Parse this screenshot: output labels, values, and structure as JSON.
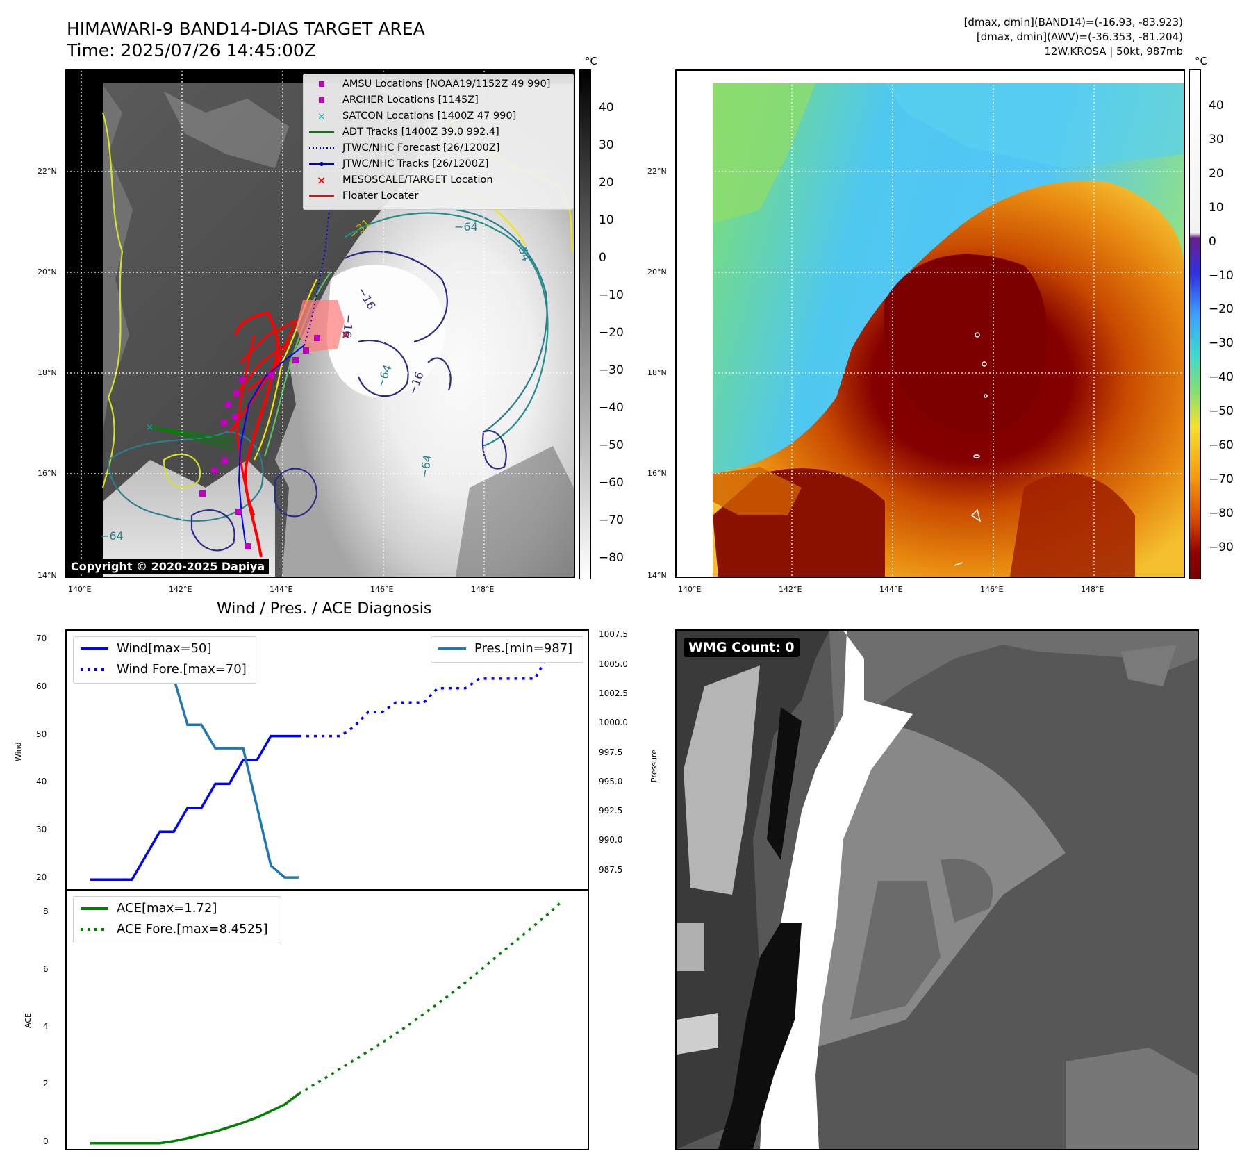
{
  "header": {
    "title_line1": "HIMAWARI-9 BAND14-DIAS TARGET AREA",
    "title_line2": "Time: 2025/07/26 14:45:00Z",
    "info_line1": "[dmax, dmin](BAND14)=(-16.93, -83.923)",
    "info_line2": "[dmax, dmin](AWV)=(-36.353, -81.204)",
    "info_line3": "12W.KROSA | 50kt, 987mb"
  },
  "map_axes": {
    "lat_labels": [
      "22°N",
      "20°N",
      "18°N",
      "16°N",
      "14°N"
    ],
    "lon_labels": [
      "140°E",
      "142°E",
      "144°E",
      "146°E",
      "148°E"
    ]
  },
  "ir_panel": {
    "colorbar_unit": "°C",
    "colorbar_ticks": [
      "40",
      "30",
      "20",
      "10",
      "0",
      "−10",
      "−20",
      "−30",
      "−40",
      "−50",
      "−60",
      "−70",
      "−80"
    ],
    "copyright": "Copyright © 2020-2025 Dapiya",
    "contour_labels": [
      "−64",
      "−54",
      "−16",
      "−64",
      "−16",
      "−64",
      "−31",
      "−16",
      "−64"
    ],
    "legend": [
      {
        "label": "AMSU Locations [NOAA19/1152Z 49 990]",
        "color": "#c000c0",
        "symbol": "square"
      },
      {
        "label": "ARCHER Locations [1145Z]",
        "color": "#c000c0",
        "symbol": "square"
      },
      {
        "label": "SATCON Locations [1400Z 47 990]",
        "color": "#00b0b0",
        "symbol": "x"
      },
      {
        "label": "ADT Tracks [1400Z 39.0 992.4]",
        "color": "#008000",
        "symbol": "line"
      },
      {
        "label": "JTWC/NHC Forecast [26/1200Z]",
        "color": "#0000cc",
        "symbol": "dotted"
      },
      {
        "label": "JTWC/NHC Tracks [26/1200Z]",
        "color": "#0000cc",
        "symbol": "line-dot"
      },
      {
        "label": "MESOSCALE/TARGET Location",
        "color": "#ff0000",
        "symbol": "x"
      },
      {
        "label": "Floater Locater",
        "color": "#ff0000",
        "symbol": "line"
      }
    ]
  },
  "awv_panel": {
    "colorbar_unit": "°C",
    "colorbar_ticks": [
      "40",
      "30",
      "20",
      "10",
      "0",
      "−10",
      "−20",
      "−30",
      "−40",
      "−50",
      "−60",
      "−70",
      "−80",
      "−90"
    ]
  },
  "wmg_panel": {
    "label": "WMG Count: 0"
  },
  "diagnosis": {
    "title": "Wind / Pres. / ACE Diagnosis",
    "wind_axis_title": "Wind",
    "pressure_axis_title": "Pressure",
    "ace_axis_title": "ACE",
    "wind_ticks": [
      "70",
      "60",
      "50",
      "40",
      "30",
      "20"
    ],
    "pressure_ticks": [
      "1007.5",
      "1005.0",
      "1002.5",
      "1000.0",
      "997.5",
      "995.0",
      "992.5",
      "990.0",
      "987.5"
    ],
    "ace_ticks": [
      "8",
      "6",
      "4",
      "2",
      "0"
    ],
    "legend_wind": "Wind[max=50]",
    "legend_wind_fore": "Wind Fore.[max=70]",
    "legend_pres": "Pres.[min=987]",
    "legend_ace": "ACE[max=1.72]",
    "legend_ace_fore": "ACE Fore.[max=8.4525]"
  },
  "chart_data": {
    "type": "line",
    "x": [
      0,
      1,
      2,
      3,
      4,
      5,
      6,
      7,
      8,
      9,
      10,
      11,
      12,
      13,
      14,
      15,
      16,
      17,
      18,
      19,
      20,
      21,
      22,
      23,
      24,
      25,
      26,
      27,
      28,
      29,
      30,
      31,
      32,
      33,
      34
    ],
    "series": [
      {
        "name": "Wind[max=50]",
        "axis": "wind",
        "style": "solid",
        "color": "#0000ff",
        "x": [
          0,
          1,
          2,
          3,
          4,
          5,
          6,
          7,
          8,
          9,
          10,
          11,
          12,
          13,
          14,
          15
        ],
        "values": [
          20,
          20,
          20,
          20,
          25,
          30,
          30,
          35,
          35,
          40,
          40,
          45,
          45,
          50,
          50,
          50
        ]
      },
      {
        "name": "Wind Fore.[max=70]",
        "axis": "wind",
        "style": "dotted",
        "color": "#0000ff",
        "x": [
          15,
          16,
          17,
          18,
          19,
          20,
          21,
          22,
          23,
          24,
          25,
          26,
          27,
          28,
          29,
          30,
          31,
          32,
          33,
          34
        ],
        "values": [
          50,
          50,
          50,
          50,
          52,
          55,
          55,
          57,
          57,
          57,
          60,
          60,
          60,
          62,
          62,
          62,
          62,
          62,
          67,
          67
        ]
      },
      {
        "name": "Pres.[min=987]",
        "axis": "pressure",
        "style": "solid",
        "color": "#1f77b4",
        "x": [
          0,
          1,
          2,
          3,
          4,
          5,
          6,
          7,
          8,
          9,
          10,
          11,
          12,
          13,
          14,
          15
        ],
        "values": [
          1007,
          1007,
          1007,
          1005,
          1005,
          1004,
          1004,
          1000,
          1000,
          998,
          998,
          998,
          993,
          988,
          987,
          987
        ]
      },
      {
        "name": "ACE[max=1.72]",
        "axis": "ace",
        "style": "solid",
        "color": "#008000",
        "x": [
          0,
          1,
          2,
          3,
          4,
          5,
          6,
          7,
          8,
          9,
          10,
          11,
          12,
          13,
          14,
          15
        ],
        "values": [
          0,
          0,
          0,
          0,
          0,
          0,
          0.07,
          0.17,
          0.29,
          0.41,
          0.56,
          0.72,
          0.9,
          1.12,
          1.35,
          1.72
        ]
      },
      {
        "name": "ACE Fore.[max=8.4525]",
        "axis": "ace",
        "style": "dotted",
        "color": "#008000",
        "x": [
          15,
          17,
          19,
          21,
          23,
          25,
          27,
          29,
          31,
          33,
          34
        ],
        "values": [
          1.72,
          2.3,
          2.9,
          3.5,
          4.15,
          4.85,
          5.6,
          6.4,
          7.2,
          8.0,
          8.45
        ]
      }
    ],
    "wind_ylim": [
      18,
      72
    ],
    "pressure_ylim": [
      986,
      1008
    ],
    "ace_ylim": [
      -0.2,
      8.8
    ]
  }
}
